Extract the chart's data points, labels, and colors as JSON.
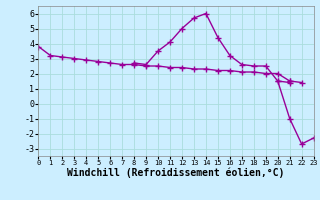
{
  "background_color": "#cceeff",
  "grid_color": "#aadddd",
  "line_color": "#990099",
  "marker": "+",
  "markersize": 4,
  "linewidth": 1.0,
  "markeredgewidth": 1.0,
  "xlabel": "Windchill (Refroidissement éolien,°C)",
  "xlim": [
    0,
    23
  ],
  "ylim": [
    -3.5,
    6.5
  ],
  "yticks": [
    -3,
    -2,
    -1,
    0,
    1,
    2,
    3,
    4,
    5,
    6
  ],
  "xticks": [
    0,
    1,
    2,
    3,
    4,
    5,
    6,
    7,
    8,
    9,
    10,
    11,
    12,
    13,
    14,
    15,
    16,
    17,
    18,
    19,
    20,
    21,
    22,
    23
  ],
  "series": [
    [
      3.8,
      3.2,
      3.1,
      3.0,
      2.9,
      2.8,
      2.7,
      2.6,
      2.6,
      2.5,
      2.5,
      2.4,
      2.4,
      2.3,
      2.3,
      2.2,
      2.2,
      2.1,
      2.1,
      2.0,
      2.0,
      1.5,
      null,
      null
    ],
    [
      null,
      null,
      null,
      null,
      null,
      null,
      null,
      null,
      2.7,
      2.6,
      3.5,
      4.1,
      5.0,
      5.7,
      6.0,
      4.4,
      3.2,
      2.6,
      2.5,
      2.5,
      1.5,
      1.4,
      null,
      null
    ],
    [
      null,
      null,
      null,
      null,
      null,
      null,
      null,
      null,
      null,
      null,
      null,
      null,
      null,
      null,
      null,
      null,
      null,
      null,
      null,
      null,
      null,
      1.5,
      1.4,
      null
    ],
    [
      null,
      null,
      null,
      null,
      null,
      null,
      null,
      null,
      null,
      null,
      null,
      null,
      null,
      null,
      null,
      null,
      null,
      null,
      null,
      null,
      1.5,
      -1.0,
      -2.7,
      -2.3
    ]
  ],
  "xlabel_fontsize": 7,
  "xtick_fontsize": 5,
  "ytick_fontsize": 6
}
